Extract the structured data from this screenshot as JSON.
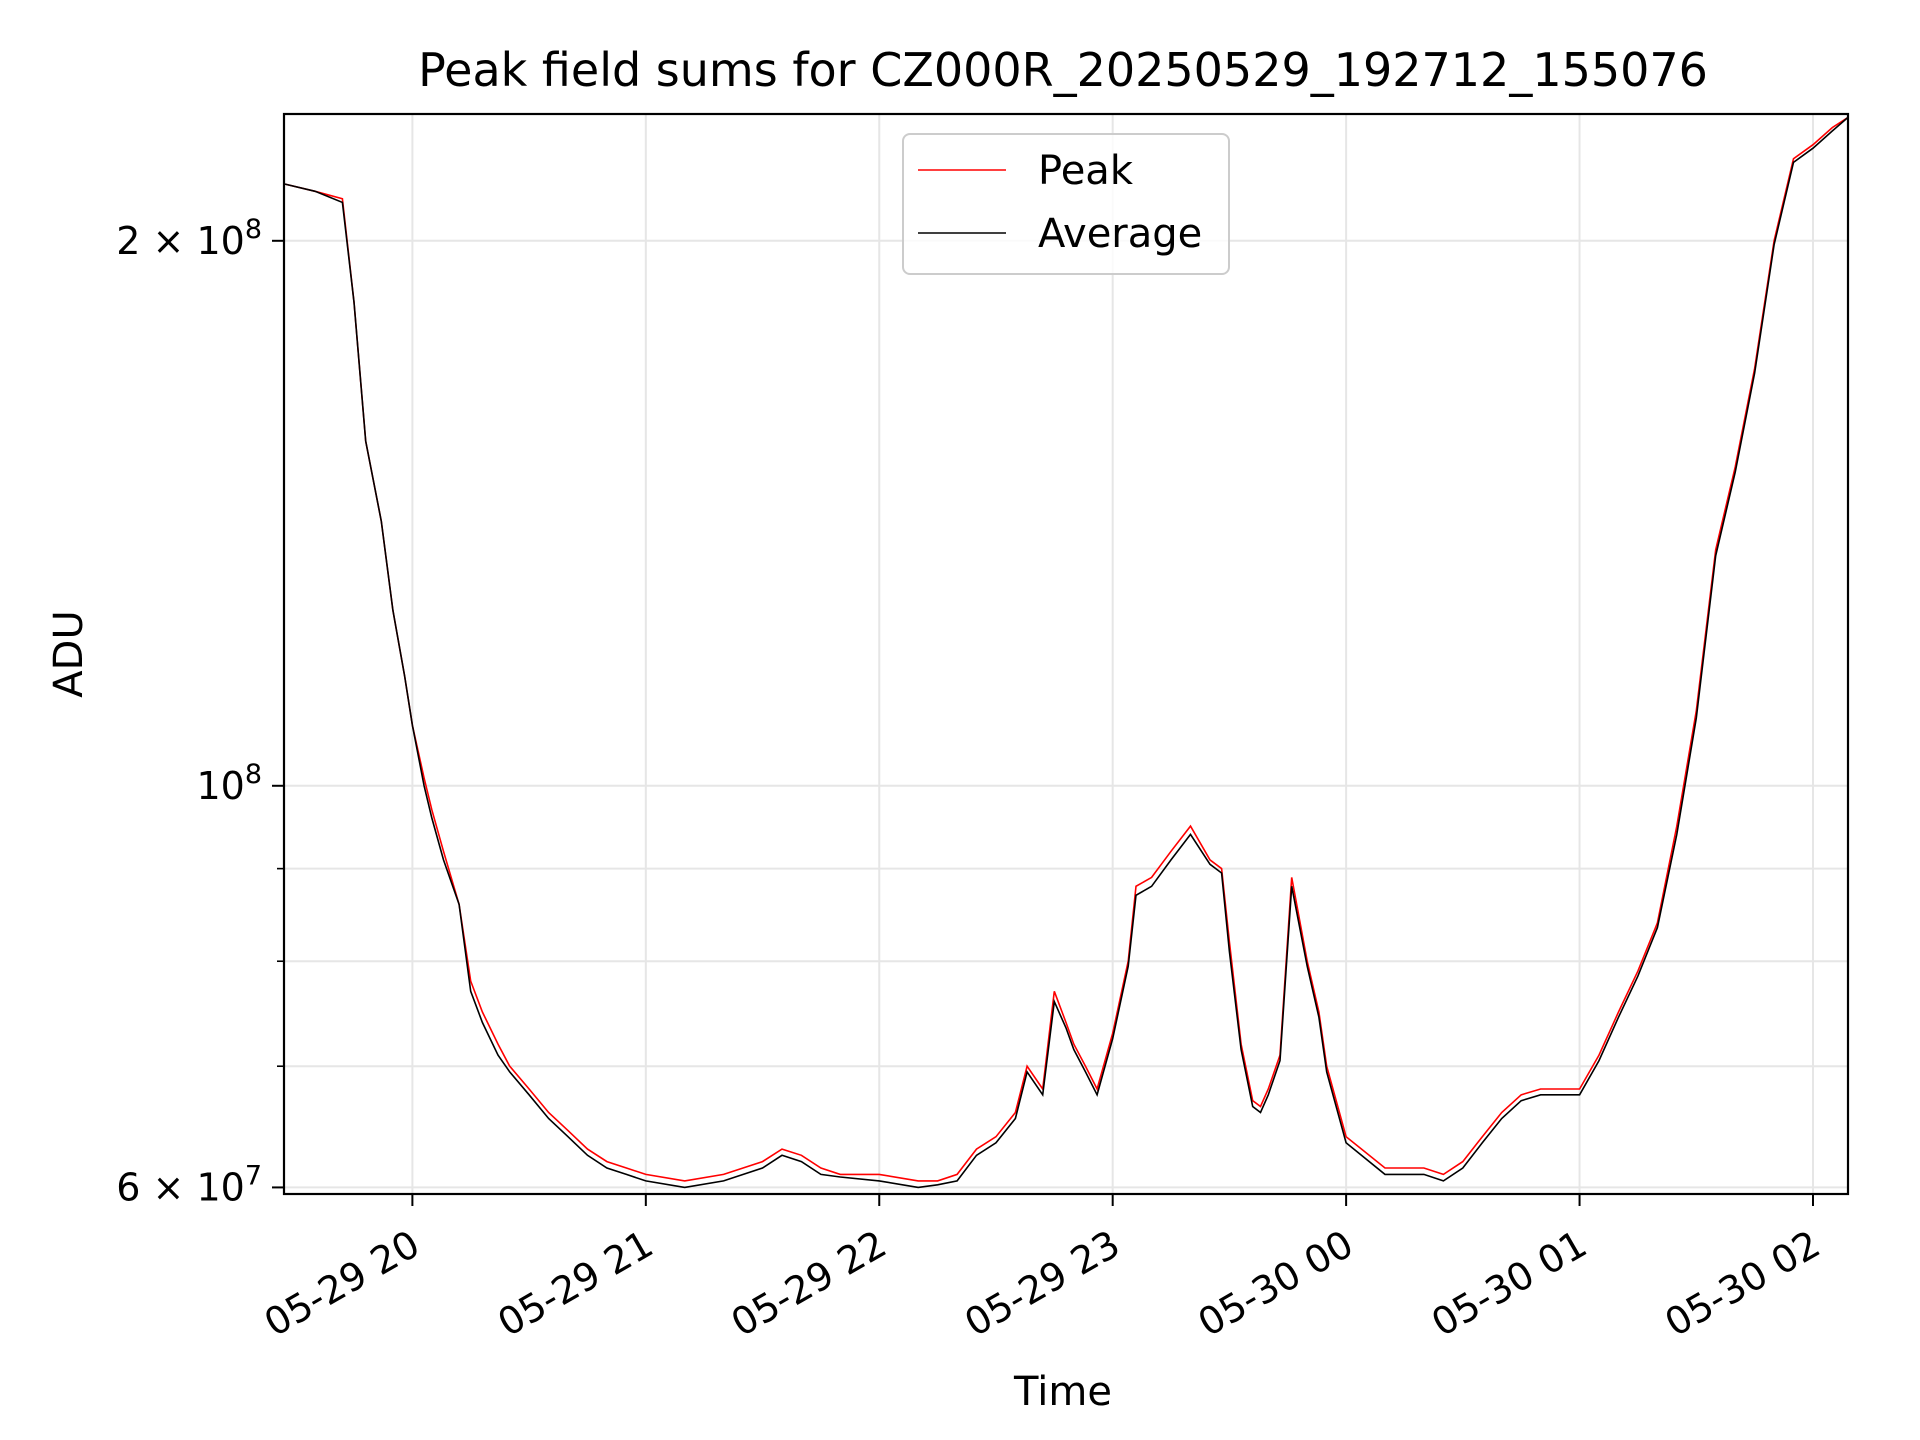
{
  "chart_data": {
    "type": "line",
    "title": "Peak field sums for CZ000R_20250529_192712_155076",
    "xlabel": "Time",
    "ylabel": "ADU",
    "y_scale": "log",
    "ylim": [
      59500000,
      235000000
    ],
    "xlim": [
      "2025-05-29 19:27",
      "2025-05-30 02:09"
    ],
    "grid": true,
    "legend": {
      "position": "upper-center"
    },
    "x_ticks": [
      {
        "t": "2025-05-29 20:00",
        "label": "05-29 20"
      },
      {
        "t": "2025-05-29 21:00",
        "label": "05-29 21"
      },
      {
        "t": "2025-05-29 22:00",
        "label": "05-29 22"
      },
      {
        "t": "2025-05-29 23:00",
        "label": "05-29 23"
      },
      {
        "t": "2025-05-30 00:00",
        "label": "05-30 00"
      },
      {
        "t": "2025-05-30 01:00",
        "label": "05-30 01"
      },
      {
        "t": "2025-05-30 02:00",
        "label": "05-30 02"
      }
    ],
    "y_ticks_major": [
      {
        "v": 60000000,
        "mantissa": "6",
        "exp": "7"
      },
      {
        "v": 100000000,
        "mantissa": "",
        "exp": "8"
      },
      {
        "v": 200000000,
        "mantissa": "2",
        "exp": "8"
      }
    ],
    "y_ticks_minor": [
      70000000,
      80000000,
      90000000
    ],
    "series": [
      {
        "name": "Peak",
        "color": "#ff0000",
        "x": [
          "2025-05-29 19:27",
          "2025-05-29 19:35",
          "2025-05-29 19:42",
          "2025-05-29 19:45",
          "2025-05-29 19:48",
          "2025-05-29 19:52",
          "2025-05-29 19:55",
          "2025-05-29 19:58",
          "2025-05-29 20:00",
          "2025-05-29 20:03",
          "2025-05-29 20:05",
          "2025-05-29 20:08",
          "2025-05-29 20:12",
          "2025-05-29 20:15",
          "2025-05-29 20:18",
          "2025-05-29 20:22",
          "2025-05-29 20:25",
          "2025-05-29 20:30",
          "2025-05-29 20:35",
          "2025-05-29 20:40",
          "2025-05-29 20:45",
          "2025-05-29 20:50",
          "2025-05-29 20:55",
          "2025-05-29 21:00",
          "2025-05-29 21:10",
          "2025-05-29 21:20",
          "2025-05-29 21:30",
          "2025-05-29 21:35",
          "2025-05-29 21:40",
          "2025-05-29 21:45",
          "2025-05-29 21:50",
          "2025-05-29 22:00",
          "2025-05-29 22:10",
          "2025-05-29 22:15",
          "2025-05-29 22:20",
          "2025-05-29 22:25",
          "2025-05-29 22:30",
          "2025-05-29 22:35",
          "2025-05-29 22:38",
          "2025-05-29 22:42",
          "2025-05-29 22:45",
          "2025-05-29 22:48",
          "2025-05-29 22:50",
          "2025-05-29 22:53",
          "2025-05-29 22:56",
          "2025-05-29 23:00",
          "2025-05-29 23:04",
          "2025-05-29 23:06",
          "2025-05-29 23:10",
          "2025-05-29 23:15",
          "2025-05-29 23:20",
          "2025-05-29 23:25",
          "2025-05-29 23:28",
          "2025-05-29 23:30",
          "2025-05-29 23:33",
          "2025-05-29 23:36",
          "2025-05-29 23:38",
          "2025-05-29 23:40",
          "2025-05-29 23:43",
          "2025-05-29 23:46",
          "2025-05-29 23:50",
          "2025-05-29 23:53",
          "2025-05-29 23:55",
          "2025-05-30 00:00",
          "2025-05-30 00:10",
          "2025-05-30 00:20",
          "2025-05-30 00:25",
          "2025-05-30 00:30",
          "2025-05-30 00:35",
          "2025-05-30 00:40",
          "2025-05-30 00:45",
          "2025-05-30 00:50",
          "2025-05-30 00:55",
          "2025-05-30 01:00",
          "2025-05-30 01:05",
          "2025-05-30 01:10",
          "2025-05-30 01:15",
          "2025-05-30 01:20",
          "2025-05-30 01:25",
          "2025-05-30 01:30",
          "2025-05-30 01:35",
          "2025-05-30 01:40",
          "2025-05-30 01:45",
          "2025-05-30 01:50",
          "2025-05-30 01:55",
          "2025-05-30 02:00",
          "2025-05-30 02:05",
          "2025-05-30 02:09"
        ],
        "values": [
          215000000,
          213000000,
          211000000,
          185000000,
          155000000,
          140000000,
          125000000,
          115000000,
          108000000,
          101000000,
          97000000,
          92000000,
          86000000,
          78000000,
          75000000,
          72000000,
          70000000,
          68000000,
          66000000,
          64500000,
          63000000,
          62000000,
          61500000,
          61000000,
          60500000,
          61000000,
          62000000,
          63000000,
          62500000,
          61500000,
          61000000,
          61000000,
          60500000,
          60500000,
          61000000,
          63000000,
          64000000,
          66000000,
          70000000,
          68000000,
          77000000,
          74000000,
          72000000,
          70000000,
          68000000,
          73000000,
          80000000,
          88000000,
          89000000,
          92000000,
          95000000,
          91000000,
          90000000,
          82000000,
          72000000,
          67000000,
          66500000,
          68000000,
          71000000,
          89000000,
          80000000,
          75000000,
          70000000,
          64000000,
          61500000,
          61500000,
          61000000,
          62000000,
          64000000,
          66000000,
          67500000,
          68000000,
          68000000,
          68000000,
          71000000,
          75000000,
          79000000,
          84000000,
          95000000,
          110000000,
          135000000,
          150000000,
          170000000,
          200000000,
          222000000,
          226000000,
          231000000,
          234000000
        ]
      },
      {
        "name": "Average",
        "color": "#000000",
        "x": [
          "2025-05-29 19:27",
          "2025-05-29 19:35",
          "2025-05-29 19:42",
          "2025-05-29 19:45",
          "2025-05-29 19:48",
          "2025-05-29 19:52",
          "2025-05-29 19:55",
          "2025-05-29 19:58",
          "2025-05-29 20:00",
          "2025-05-29 20:03",
          "2025-05-29 20:05",
          "2025-05-29 20:08",
          "2025-05-29 20:12",
          "2025-05-29 20:15",
          "2025-05-29 20:18",
          "2025-05-29 20:22",
          "2025-05-29 20:25",
          "2025-05-29 20:30",
          "2025-05-29 20:35",
          "2025-05-29 20:40",
          "2025-05-29 20:45",
          "2025-05-29 20:50",
          "2025-05-29 20:55",
          "2025-05-29 21:00",
          "2025-05-29 21:10",
          "2025-05-29 21:20",
          "2025-05-29 21:30",
          "2025-05-29 21:35",
          "2025-05-29 21:40",
          "2025-05-29 21:45",
          "2025-05-29 21:50",
          "2025-05-29 22:00",
          "2025-05-29 22:10",
          "2025-05-29 22:15",
          "2025-05-29 22:20",
          "2025-05-29 22:25",
          "2025-05-29 22:30",
          "2025-05-29 22:35",
          "2025-05-29 22:38",
          "2025-05-29 22:42",
          "2025-05-29 22:45",
          "2025-05-29 22:48",
          "2025-05-29 22:50",
          "2025-05-29 22:53",
          "2025-05-29 22:56",
          "2025-05-29 23:00",
          "2025-05-29 23:04",
          "2025-05-29 23:06",
          "2025-05-29 23:10",
          "2025-05-29 23:15",
          "2025-05-29 23:20",
          "2025-05-29 23:25",
          "2025-05-29 23:28",
          "2025-05-29 23:30",
          "2025-05-29 23:33",
          "2025-05-29 23:36",
          "2025-05-29 23:38",
          "2025-05-29 23:40",
          "2025-05-29 23:43",
          "2025-05-29 23:46",
          "2025-05-29 23:50",
          "2025-05-29 23:53",
          "2025-05-29 23:55",
          "2025-05-30 00:00",
          "2025-05-30 00:10",
          "2025-05-30 00:20",
          "2025-05-30 00:25",
          "2025-05-30 00:30",
          "2025-05-30 00:35",
          "2025-05-30 00:40",
          "2025-05-30 00:45",
          "2025-05-30 00:50",
          "2025-05-30 00:55",
          "2025-05-30 01:00",
          "2025-05-30 01:05",
          "2025-05-30 01:10",
          "2025-05-30 01:15",
          "2025-05-30 01:20",
          "2025-05-30 01:25",
          "2025-05-30 01:30",
          "2025-05-30 01:35",
          "2025-05-30 01:40",
          "2025-05-30 01:45",
          "2025-05-30 01:50",
          "2025-05-30 01:55",
          "2025-05-30 02:00",
          "2025-05-30 02:05",
          "2025-05-30 02:09"
        ],
        "values": [
          215000000,
          213000000,
          210000000,
          185000000,
          155000000,
          140000000,
          125000000,
          115000000,
          108000000,
          100000000,
          96000000,
          91000000,
          86000000,
          77000000,
          74000000,
          71000000,
          69500000,
          67500000,
          65500000,
          64000000,
          62500000,
          61500000,
          61000000,
          60500000,
          60000000,
          60500000,
          61500000,
          62500000,
          62000000,
          61000000,
          60800000,
          60500000,
          60000000,
          60200000,
          60500000,
          62500000,
          63500000,
          65500000,
          69500000,
          67500000,
          76000000,
          73500000,
          71500000,
          69500000,
          67500000,
          72500000,
          79500000,
          87000000,
          88000000,
          91000000,
          94000000,
          90500000,
          89500000,
          81000000,
          71500000,
          66500000,
          66000000,
          67500000,
          70500000,
          88000000,
          79500000,
          74500000,
          69500000,
          63500000,
          61000000,
          61000000,
          60500000,
          61500000,
          63500000,
          65500000,
          67000000,
          67500000,
          67500000,
          67500000,
          70500000,
          74500000,
          78500000,
          83500000,
          94000000,
          109000000,
          134000000,
          149000000,
          169000000,
          199000000,
          221000000,
          225000000,
          230000000,
          234000000
        ]
      }
    ]
  }
}
